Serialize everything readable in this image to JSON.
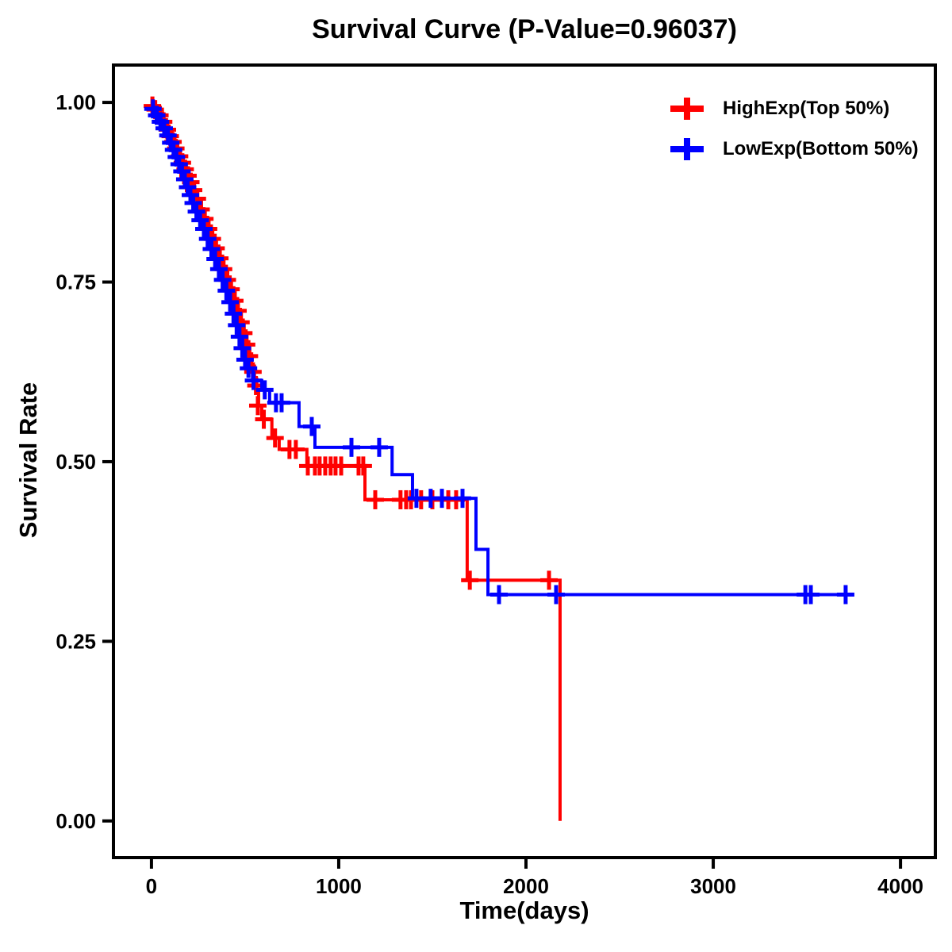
{
  "legend": {
    "items": [
      {
        "label": "HighExp(Top 50%)",
        "color": "#FF0000",
        "marker": "plus-icon"
      },
      {
        "label": "LowExp(Bottom 50%)",
        "color": "#0000FF",
        "marker": "plus-icon"
      }
    ]
  },
  "chart_data": {
    "type": "line",
    "variant": "kaplan_meier_step_survival",
    "title": "Survival Curve (P-Value=0.96037)",
    "p_value": "0.96037",
    "xlabel": "Time(days)",
    "ylabel": "Survival Rate",
    "xlim": [
      -203,
      4186
    ],
    "ylim": [
      -0.051,
      1.052
    ],
    "x_ticks": [
      0,
      1000,
      2000,
      3000,
      4000
    ],
    "x_tick_labels": [
      "0",
      "1000",
      "2000",
      "3000",
      "4000"
    ],
    "y_ticks": [
      0,
      0.25,
      0.5,
      0.75,
      1.0
    ],
    "y_tick_labels": [
      "0.00",
      "0.25",
      "0.50",
      "0.75",
      "1.00"
    ],
    "grid": false,
    "legend_position": "top-right",
    "background_color": "#FFFFFF",
    "axis_color": "#000000",
    "series": [
      {
        "id": "highexp",
        "name": "HighExp(Top 50%)",
        "color": "#FF0000",
        "steps": [
          [
            0,
            1.0
          ],
          [
            15,
            0.993
          ],
          [
            40,
            0.985
          ],
          [
            60,
            0.976
          ],
          [
            80,
            0.967
          ],
          [
            95,
            0.958
          ],
          [
            110,
            0.949
          ],
          [
            125,
            0.94
          ],
          [
            140,
            0.931
          ],
          [
            155,
            0.922
          ],
          [
            170,
            0.912
          ],
          [
            185,
            0.903
          ],
          [
            200,
            0.894
          ],
          [
            215,
            0.885
          ],
          [
            230,
            0.874
          ],
          [
            245,
            0.863
          ],
          [
            260,
            0.852
          ],
          [
            280,
            0.84
          ],
          [
            300,
            0.828
          ],
          [
            320,
            0.815
          ],
          [
            340,
            0.8
          ],
          [
            360,
            0.786
          ],
          [
            380,
            0.772
          ],
          [
            400,
            0.757
          ],
          [
            420,
            0.742
          ],
          [
            440,
            0.727
          ],
          [
            460,
            0.712
          ],
          [
            475,
            0.697
          ],
          [
            490,
            0.682
          ],
          [
            505,
            0.667
          ],
          [
            520,
            0.65
          ],
          [
            535,
            0.633
          ],
          [
            550,
            0.615
          ],
          [
            562,
            0.597
          ],
          [
            572,
            0.578
          ],
          [
            589,
            0.559
          ],
          [
            643,
            0.533
          ],
          [
            682,
            0.517
          ],
          [
            830,
            0.494
          ],
          [
            1140,
            0.447
          ],
          [
            1686,
            0.335
          ],
          [
            2182,
            0.0
          ]
        ],
        "censors": [
          [
            5,
            0.995
          ],
          [
            20,
            0.99
          ],
          [
            45,
            0.982
          ],
          [
            65,
            0.973
          ],
          [
            85,
            0.962
          ],
          [
            100,
            0.953
          ],
          [
            115,
            0.945
          ],
          [
            130,
            0.936
          ],
          [
            150,
            0.925
          ],
          [
            165,
            0.916
          ],
          [
            180,
            0.907
          ],
          [
            195,
            0.898
          ],
          [
            210,
            0.889
          ],
          [
            225,
            0.878
          ],
          [
            245,
            0.866
          ],
          [
            265,
            0.851
          ],
          [
            285,
            0.838
          ],
          [
            305,
            0.824
          ],
          [
            325,
            0.81
          ],
          [
            345,
            0.797
          ],
          [
            365,
            0.783
          ],
          [
            385,
            0.768
          ],
          [
            405,
            0.753
          ],
          [
            425,
            0.74
          ],
          [
            445,
            0.724
          ],
          [
            462,
            0.71
          ],
          [
            478,
            0.694
          ],
          [
            493,
            0.679
          ],
          [
            508,
            0.663
          ],
          [
            523,
            0.647
          ],
          [
            542,
            0.625
          ],
          [
            558,
            0.606
          ],
          [
            568,
            0.578
          ],
          [
            600,
            0.559
          ],
          [
            660,
            0.533
          ],
          [
            737,
            0.517
          ],
          [
            771,
            0.517
          ],
          [
            835,
            0.494
          ],
          [
            873,
            0.494
          ],
          [
            898,
            0.494
          ],
          [
            928,
            0.494
          ],
          [
            957,
            0.494
          ],
          [
            983,
            0.494
          ],
          [
            1013,
            0.494
          ],
          [
            1106,
            0.494
          ],
          [
            1131,
            0.494
          ],
          [
            1195,
            0.447
          ],
          [
            1330,
            0.447
          ],
          [
            1360,
            0.447
          ],
          [
            1386,
            0.447
          ],
          [
            1440,
            0.447
          ],
          [
            1500,
            0.447
          ],
          [
            1585,
            0.447
          ],
          [
            1627,
            0.447
          ],
          [
            1700,
            0.335
          ],
          [
            2123,
            0.335
          ]
        ]
      },
      {
        "id": "lowexp",
        "name": "LowExp(Bottom 50%)",
        "color": "#0000FF",
        "steps": [
          [
            0,
            1.0
          ],
          [
            10,
            0.991
          ],
          [
            30,
            0.982
          ],
          [
            50,
            0.973
          ],
          [
            70,
            0.964
          ],
          [
            85,
            0.954
          ],
          [
            100,
            0.944
          ],
          [
            115,
            0.934
          ],
          [
            130,
            0.924
          ],
          [
            145,
            0.914
          ],
          [
            160,
            0.904
          ],
          [
            175,
            0.893
          ],
          [
            190,
            0.882
          ],
          [
            205,
            0.871
          ],
          [
            220,
            0.86
          ],
          [
            235,
            0.848
          ],
          [
            255,
            0.836
          ],
          [
            275,
            0.824
          ],
          [
            295,
            0.81
          ],
          [
            315,
            0.796
          ],
          [
            335,
            0.782
          ],
          [
            355,
            0.768
          ],
          [
            375,
            0.753
          ],
          [
            395,
            0.738
          ],
          [
            415,
            0.722
          ],
          [
            435,
            0.706
          ],
          [
            450,
            0.69
          ],
          [
            465,
            0.674
          ],
          [
            480,
            0.658
          ],
          [
            495,
            0.642
          ],
          [
            510,
            0.63
          ],
          [
            540,
            0.613
          ],
          [
            589,
            0.6
          ],
          [
            631,
            0.582
          ],
          [
            788,
            0.549
          ],
          [
            873,
            0.52
          ],
          [
            1285,
            0.482
          ],
          [
            1394,
            0.449
          ],
          [
            1733,
            0.378
          ],
          [
            1797,
            0.315
          ],
          [
            3733,
            0.315
          ]
        ],
        "censors": [
          [
            8,
            0.991
          ],
          [
            28,
            0.982
          ],
          [
            48,
            0.973
          ],
          [
            68,
            0.964
          ],
          [
            88,
            0.954
          ],
          [
            103,
            0.944
          ],
          [
            118,
            0.934
          ],
          [
            133,
            0.924
          ],
          [
            148,
            0.914
          ],
          [
            163,
            0.904
          ],
          [
            178,
            0.893
          ],
          [
            193,
            0.882
          ],
          [
            208,
            0.871
          ],
          [
            223,
            0.86
          ],
          [
            240,
            0.848
          ],
          [
            260,
            0.836
          ],
          [
            280,
            0.824
          ],
          [
            300,
            0.81
          ],
          [
            320,
            0.796
          ],
          [
            340,
            0.782
          ],
          [
            360,
            0.768
          ],
          [
            380,
            0.753
          ],
          [
            400,
            0.738
          ],
          [
            420,
            0.722
          ],
          [
            438,
            0.706
          ],
          [
            455,
            0.69
          ],
          [
            470,
            0.674
          ],
          [
            485,
            0.658
          ],
          [
            500,
            0.642
          ],
          [
            518,
            0.63
          ],
          [
            545,
            0.613
          ],
          [
            605,
            0.6
          ],
          [
            665,
            0.582
          ],
          [
            695,
            0.582
          ],
          [
            856,
            0.549
          ],
          [
            1068,
            0.52
          ],
          [
            1216,
            0.52
          ],
          [
            1415,
            0.449
          ],
          [
            1491,
            0.449
          ],
          [
            1551,
            0.449
          ],
          [
            1661,
            0.449
          ],
          [
            1856,
            0.315
          ],
          [
            2161,
            0.315
          ],
          [
            3492,
            0.315
          ],
          [
            3521,
            0.315
          ],
          [
            3707,
            0.315
          ]
        ]
      }
    ]
  }
}
